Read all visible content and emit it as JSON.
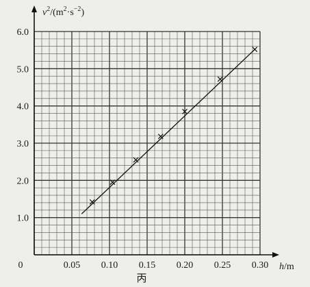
{
  "chart_data": {
    "type": "scatter",
    "ylabel": {
      "var": "v",
      "exp": "2",
      "rest": "/(m",
      "exp2": "2",
      "rest2": "·s",
      "exp3": "−2",
      "close": ")"
    },
    "xlabel": {
      "var": "h",
      "unit": "/m"
    },
    "origin_label": "0",
    "x_ticks": [
      "0.05",
      "0.10",
      "0.15",
      "0.20",
      "0.25",
      "0.30"
    ],
    "y_ticks": [
      "1.0",
      "2.0",
      "3.0",
      "4.0",
      "5.0",
      "6.0"
    ],
    "xlim": [
      0,
      0.3
    ],
    "ylim": [
      0,
      6.0
    ],
    "grid": true,
    "series": [
      {
        "points": [
          {
            "x": 0.077,
            "y": 1.42
          },
          {
            "x": 0.104,
            "y": 1.95
          },
          {
            "x": 0.135,
            "y": 2.55
          },
          {
            "x": 0.168,
            "y": 3.18
          },
          {
            "x": 0.2,
            "y": 3.85
          },
          {
            "x": 0.247,
            "y": 4.72
          },
          {
            "x": 0.293,
            "y": 5.52
          }
        ],
        "fit_line": {
          "x": [
            0.063,
            0.293
          ],
          "y": [
            1.1,
            5.52
          ]
        }
      }
    ]
  },
  "caption": "丙"
}
